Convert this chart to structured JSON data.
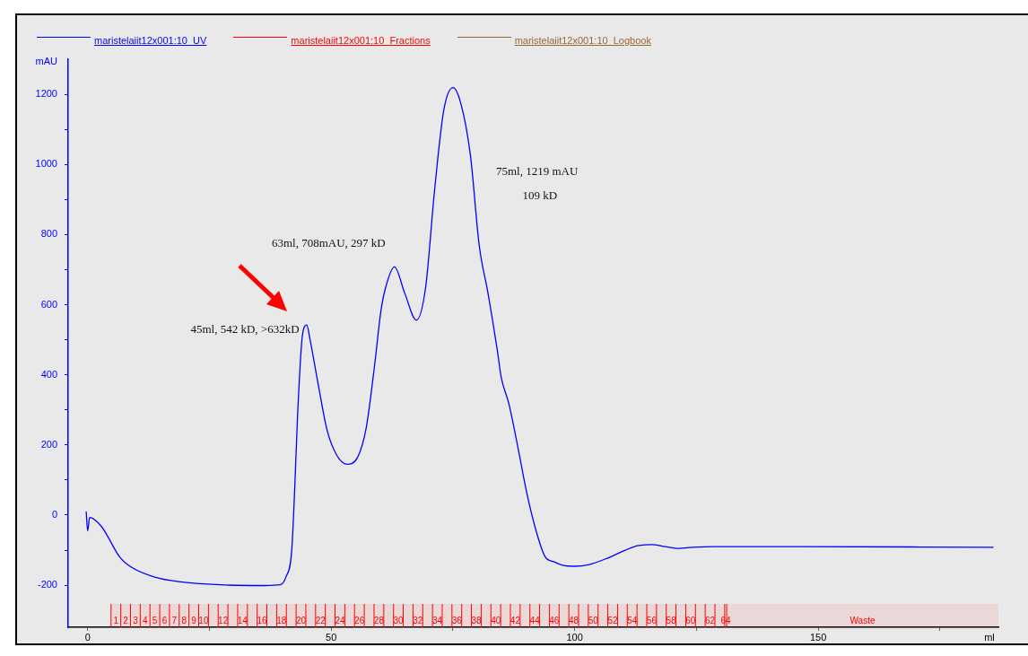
{
  "chart_data": {
    "type": "line",
    "xlabel": "ml",
    "ylabel": "mAU",
    "legend": "top left",
    "grid": false,
    "marker": "none",
    "line_style": "solid",
    "xlim": [
      -4,
      187
    ],
    "xticks": [
      0,
      {
        "value": 25,
        "label": null
      },
      50,
      {
        "value": 75,
        "label": null
      },
      100,
      {
        "value": 125,
        "label": null
      },
      150,
      {
        "value": 175,
        "label": null
      }
    ],
    "ylim": [
      -320,
      1300
    ],
    "yticks": [
      -200,
      {
        "value": -100,
        "label": null
      },
      0,
      {
        "value": 100,
        "label": null
      },
      200,
      {
        "value": 300,
        "label": null
      },
      400,
      {
        "value": 500,
        "label": null
      },
      600,
      {
        "value": 700,
        "label": null
      },
      800,
      {
        "value": 900,
        "label": null
      },
      1000,
      {
        "value": 1100,
        "label": null
      },
      1200
    ],
    "series": [
      {
        "name": "maristelaiit12x001:10_UV",
        "color": "#0000ff",
        "x": [
          -0.3,
          0,
          0.4,
          2.8,
          4.0,
          6.5,
          8.9,
          13.8,
          18.7,
          27.3,
          36.4,
          39.5,
          40.7,
          41.9,
          42.5,
          43.1,
          44.1,
          45,
          45.6,
          47.4,
          49.2,
          51.1,
          53.2,
          55.4,
          57.2,
          59.0,
          60.2,
          61.2,
          63,
          65.1,
          67.5,
          69.4,
          71.2,
          73.1,
          75,
          76.7,
          78.6,
          80.4,
          82.2,
          84.1,
          84.9,
          86.5,
          88.4,
          90.2,
          92.0,
          93.9,
          95.7,
          97.5,
          100,
          103,
          106.7,
          110.4,
          113.1,
          115.9,
          118.6,
          121.4,
          124.1,
          128.7,
          147,
          186
        ],
        "values": [
          10,
          -45,
          -7,
          -32,
          -58,
          -118,
          -148,
          -177,
          -190,
          -199,
          -201,
          -199,
          -177,
          -101,
          70,
          283,
          513,
          542,
          505,
          368,
          240,
          172,
          145,
          164,
          249,
          437,
          581,
          650,
          708,
          633,
          556,
          650,
          922,
          1153,
          1219,
          1170,
          1025,
          769,
          633,
          471,
          394,
          317,
          189,
          61,
          -41,
          -118,
          -133,
          -143,
          -146,
          -141,
          -123,
          -100,
          -87,
          -84,
          -90,
          -95,
          -92,
          -90,
          -90,
          -92
        ]
      },
      {
        "name": "maristelaiit12x001:10_Fractions",
        "color": "#ff0000"
      },
      {
        "name": "maristelaiit12x001:10_Logbook",
        "color": "#996633"
      }
    ],
    "bands": [
      {
        "axis": "x",
        "from": 4.8,
        "to": 6.8,
        "label": "1",
        "color": "#ff0000"
      },
      {
        "axis": "x",
        "from": 6.8,
        "to": 8.8,
        "label": "2",
        "color": "#ff0000"
      },
      {
        "axis": "x",
        "from": 8.8,
        "to": 10.8,
        "label": "3",
        "color": "#ff0000"
      },
      {
        "axis": "x",
        "from": 10.8,
        "to": 12.8,
        "label": "4",
        "color": "#ff0000"
      },
      {
        "axis": "x",
        "from": 12.8,
        "to": 14.8,
        "label": "5",
        "color": "#ff0000"
      },
      {
        "axis": "x",
        "from": 14.8,
        "to": 16.8,
        "label": "6",
        "color": "#ff0000"
      },
      {
        "axis": "x",
        "from": 16.8,
        "to": 18.8,
        "label": "7",
        "color": "#ff0000"
      },
      {
        "axis": "x",
        "from": 18.8,
        "to": 20.8,
        "label": "8",
        "color": "#ff0000"
      },
      {
        "axis": "x",
        "from": 20.8,
        "to": 22.8,
        "label": "9",
        "color": "#ff0000"
      },
      {
        "axis": "x",
        "from": 22.8,
        "to": 24.8,
        "label": "10",
        "color": "#ff0000"
      },
      {
        "axis": "x",
        "from": 24.8,
        "to": 26.8,
        "label": null,
        "color": "#ff0000"
      },
      {
        "axis": "x",
        "from": 26.8,
        "to": 28.8,
        "label": "12",
        "color": "#ff0000"
      },
      {
        "axis": "x",
        "from": 28.8,
        "to": 30.8,
        "label": null,
        "color": "#ff0000"
      },
      {
        "axis": "x",
        "from": 30.8,
        "to": 32.8,
        "label": "14",
        "color": "#ff0000"
      },
      {
        "axis": "x",
        "from": 32.8,
        "to": 34.8,
        "label": null,
        "color": "#ff0000"
      },
      {
        "axis": "x",
        "from": 34.8,
        "to": 36.8,
        "label": "16",
        "color": "#ff0000"
      },
      {
        "axis": "x",
        "from": 36.8,
        "to": 38.8,
        "label": null,
        "color": "#ff0000"
      },
      {
        "axis": "x",
        "from": 38.8,
        "to": 40.8,
        "label": "18",
        "color": "#ff0000"
      },
      {
        "axis": "x",
        "from": 40.8,
        "to": 42.8,
        "label": null,
        "color": "#ff0000"
      },
      {
        "axis": "x",
        "from": 42.8,
        "to": 44.8,
        "label": "20",
        "color": "#ff0000"
      },
      {
        "axis": "x",
        "from": 44.8,
        "to": 46.8,
        "label": null,
        "color": "#ff0000"
      },
      {
        "axis": "x",
        "from": 46.8,
        "to": 48.8,
        "label": "22",
        "color": "#ff0000"
      },
      {
        "axis": "x",
        "from": 48.8,
        "to": 50.8,
        "label": null,
        "color": "#ff0000"
      },
      {
        "axis": "x",
        "from": 50.8,
        "to": 52.8,
        "label": "24",
        "color": "#ff0000"
      },
      {
        "axis": "x",
        "from": 52.8,
        "to": 54.8,
        "label": null,
        "color": "#ff0000"
      },
      {
        "axis": "x",
        "from": 54.8,
        "to": 56.8,
        "label": "26",
        "color": "#ff0000"
      },
      {
        "axis": "x",
        "from": 56.8,
        "to": 58.8,
        "label": null,
        "color": "#ff0000"
      },
      {
        "axis": "x",
        "from": 58.8,
        "to": 60.8,
        "label": "28",
        "color": "#ff0000"
      },
      {
        "axis": "x",
        "from": 60.8,
        "to": 62.8,
        "label": null,
        "color": "#ff0000"
      },
      {
        "axis": "x",
        "from": 62.8,
        "to": 64.8,
        "label": "30",
        "color": "#ff0000"
      },
      {
        "axis": "x",
        "from": 64.8,
        "to": 66.8,
        "label": null,
        "color": "#ff0000"
      },
      {
        "axis": "x",
        "from": 66.8,
        "to": 68.8,
        "label": "32",
        "color": "#ff0000"
      },
      {
        "axis": "x",
        "from": 68.8,
        "to": 70.8,
        "label": null,
        "color": "#ff0000"
      },
      {
        "axis": "x",
        "from": 70.8,
        "to": 72.8,
        "label": "34",
        "color": "#ff0000"
      },
      {
        "axis": "x",
        "from": 72.8,
        "to": 74.8,
        "label": null,
        "color": "#ff0000"
      },
      {
        "axis": "x",
        "from": 74.8,
        "to": 76.8,
        "label": "36",
        "color": "#ff0000"
      },
      {
        "axis": "x",
        "from": 76.8,
        "to": 78.8,
        "label": null,
        "color": "#ff0000"
      },
      {
        "axis": "x",
        "from": 78.8,
        "to": 80.8,
        "label": "38",
        "color": "#ff0000"
      },
      {
        "axis": "x",
        "from": 80.8,
        "to": 82.8,
        "label": null,
        "color": "#ff0000"
      },
      {
        "axis": "x",
        "from": 82.8,
        "to": 84.8,
        "label": "40",
        "color": "#ff0000"
      },
      {
        "axis": "x",
        "from": 84.8,
        "to": 86.8,
        "label": null,
        "color": "#ff0000"
      },
      {
        "axis": "x",
        "from": 86.8,
        "to": 88.8,
        "label": "42",
        "color": "#ff0000"
      },
      {
        "axis": "x",
        "from": 88.8,
        "to": 90.8,
        "label": null,
        "color": "#ff0000"
      },
      {
        "axis": "x",
        "from": 90.8,
        "to": 92.8,
        "label": "44",
        "color": "#ff0000"
      },
      {
        "axis": "x",
        "from": 92.8,
        "to": 94.8,
        "label": null,
        "color": "#ff0000"
      },
      {
        "axis": "x",
        "from": 94.8,
        "to": 96.8,
        "label": "46",
        "color": "#ff0000"
      },
      {
        "axis": "x",
        "from": 96.8,
        "to": 98.8,
        "label": null,
        "color": "#ff0000"
      },
      {
        "axis": "x",
        "from": 98.8,
        "to": 100.8,
        "label": "48",
        "color": "#ff0000"
      },
      {
        "axis": "x",
        "from": 100.8,
        "to": 102.8,
        "label": null,
        "color": "#ff0000"
      },
      {
        "axis": "x",
        "from": 102.8,
        "to": 104.8,
        "label": "50",
        "color": "#ff0000"
      },
      {
        "axis": "x",
        "from": 104.8,
        "to": 106.8,
        "label": null,
        "color": "#ff0000"
      },
      {
        "axis": "x",
        "from": 106.8,
        "to": 108.8,
        "label": "52",
        "color": "#ff0000"
      },
      {
        "axis": "x",
        "from": 108.8,
        "to": 110.8,
        "label": null,
        "color": "#ff0000"
      },
      {
        "axis": "x",
        "from": 110.8,
        "to": 112.8,
        "label": "54",
        "color": "#ff0000"
      },
      {
        "axis": "x",
        "from": 112.8,
        "to": 114.8,
        "label": null,
        "color": "#ff0000"
      },
      {
        "axis": "x",
        "from": 114.8,
        "to": 116.8,
        "label": "56",
        "color": "#ff0000"
      },
      {
        "axis": "x",
        "from": 116.8,
        "to": 118.8,
        "label": null,
        "color": "#ff0000"
      },
      {
        "axis": "x",
        "from": 118.8,
        "to": 120.8,
        "label": "58",
        "color": "#ff0000"
      },
      {
        "axis": "x",
        "from": 120.8,
        "to": 122.8,
        "label": null,
        "color": "#ff0000"
      },
      {
        "axis": "x",
        "from": 122.8,
        "to": 124.8,
        "label": "60",
        "color": "#ff0000"
      },
      {
        "axis": "x",
        "from": 124.8,
        "to": 126.8,
        "label": null,
        "color": "#ff0000"
      },
      {
        "axis": "x",
        "from": 126.8,
        "to": 128.8,
        "label": "62",
        "color": "#ff0000"
      },
      {
        "axis": "x",
        "from": 128.8,
        "to": 130.8,
        "label": null,
        "color": "#ff0000"
      },
      {
        "axis": "x",
        "from": 130.8,
        "to": 131.2,
        "label": "64",
        "color": "#ff0000"
      },
      {
        "axis": "x",
        "from": 131.2,
        "to": 187,
        "label": "Waste",
        "color": "#ff0000"
      }
    ],
    "annotations": [
      "75ml, 1219 mAU",
      "109 kD",
      "63ml, 708mAU, 297 kD",
      "45ml, 542 kD, >632kD"
    ]
  }
}
